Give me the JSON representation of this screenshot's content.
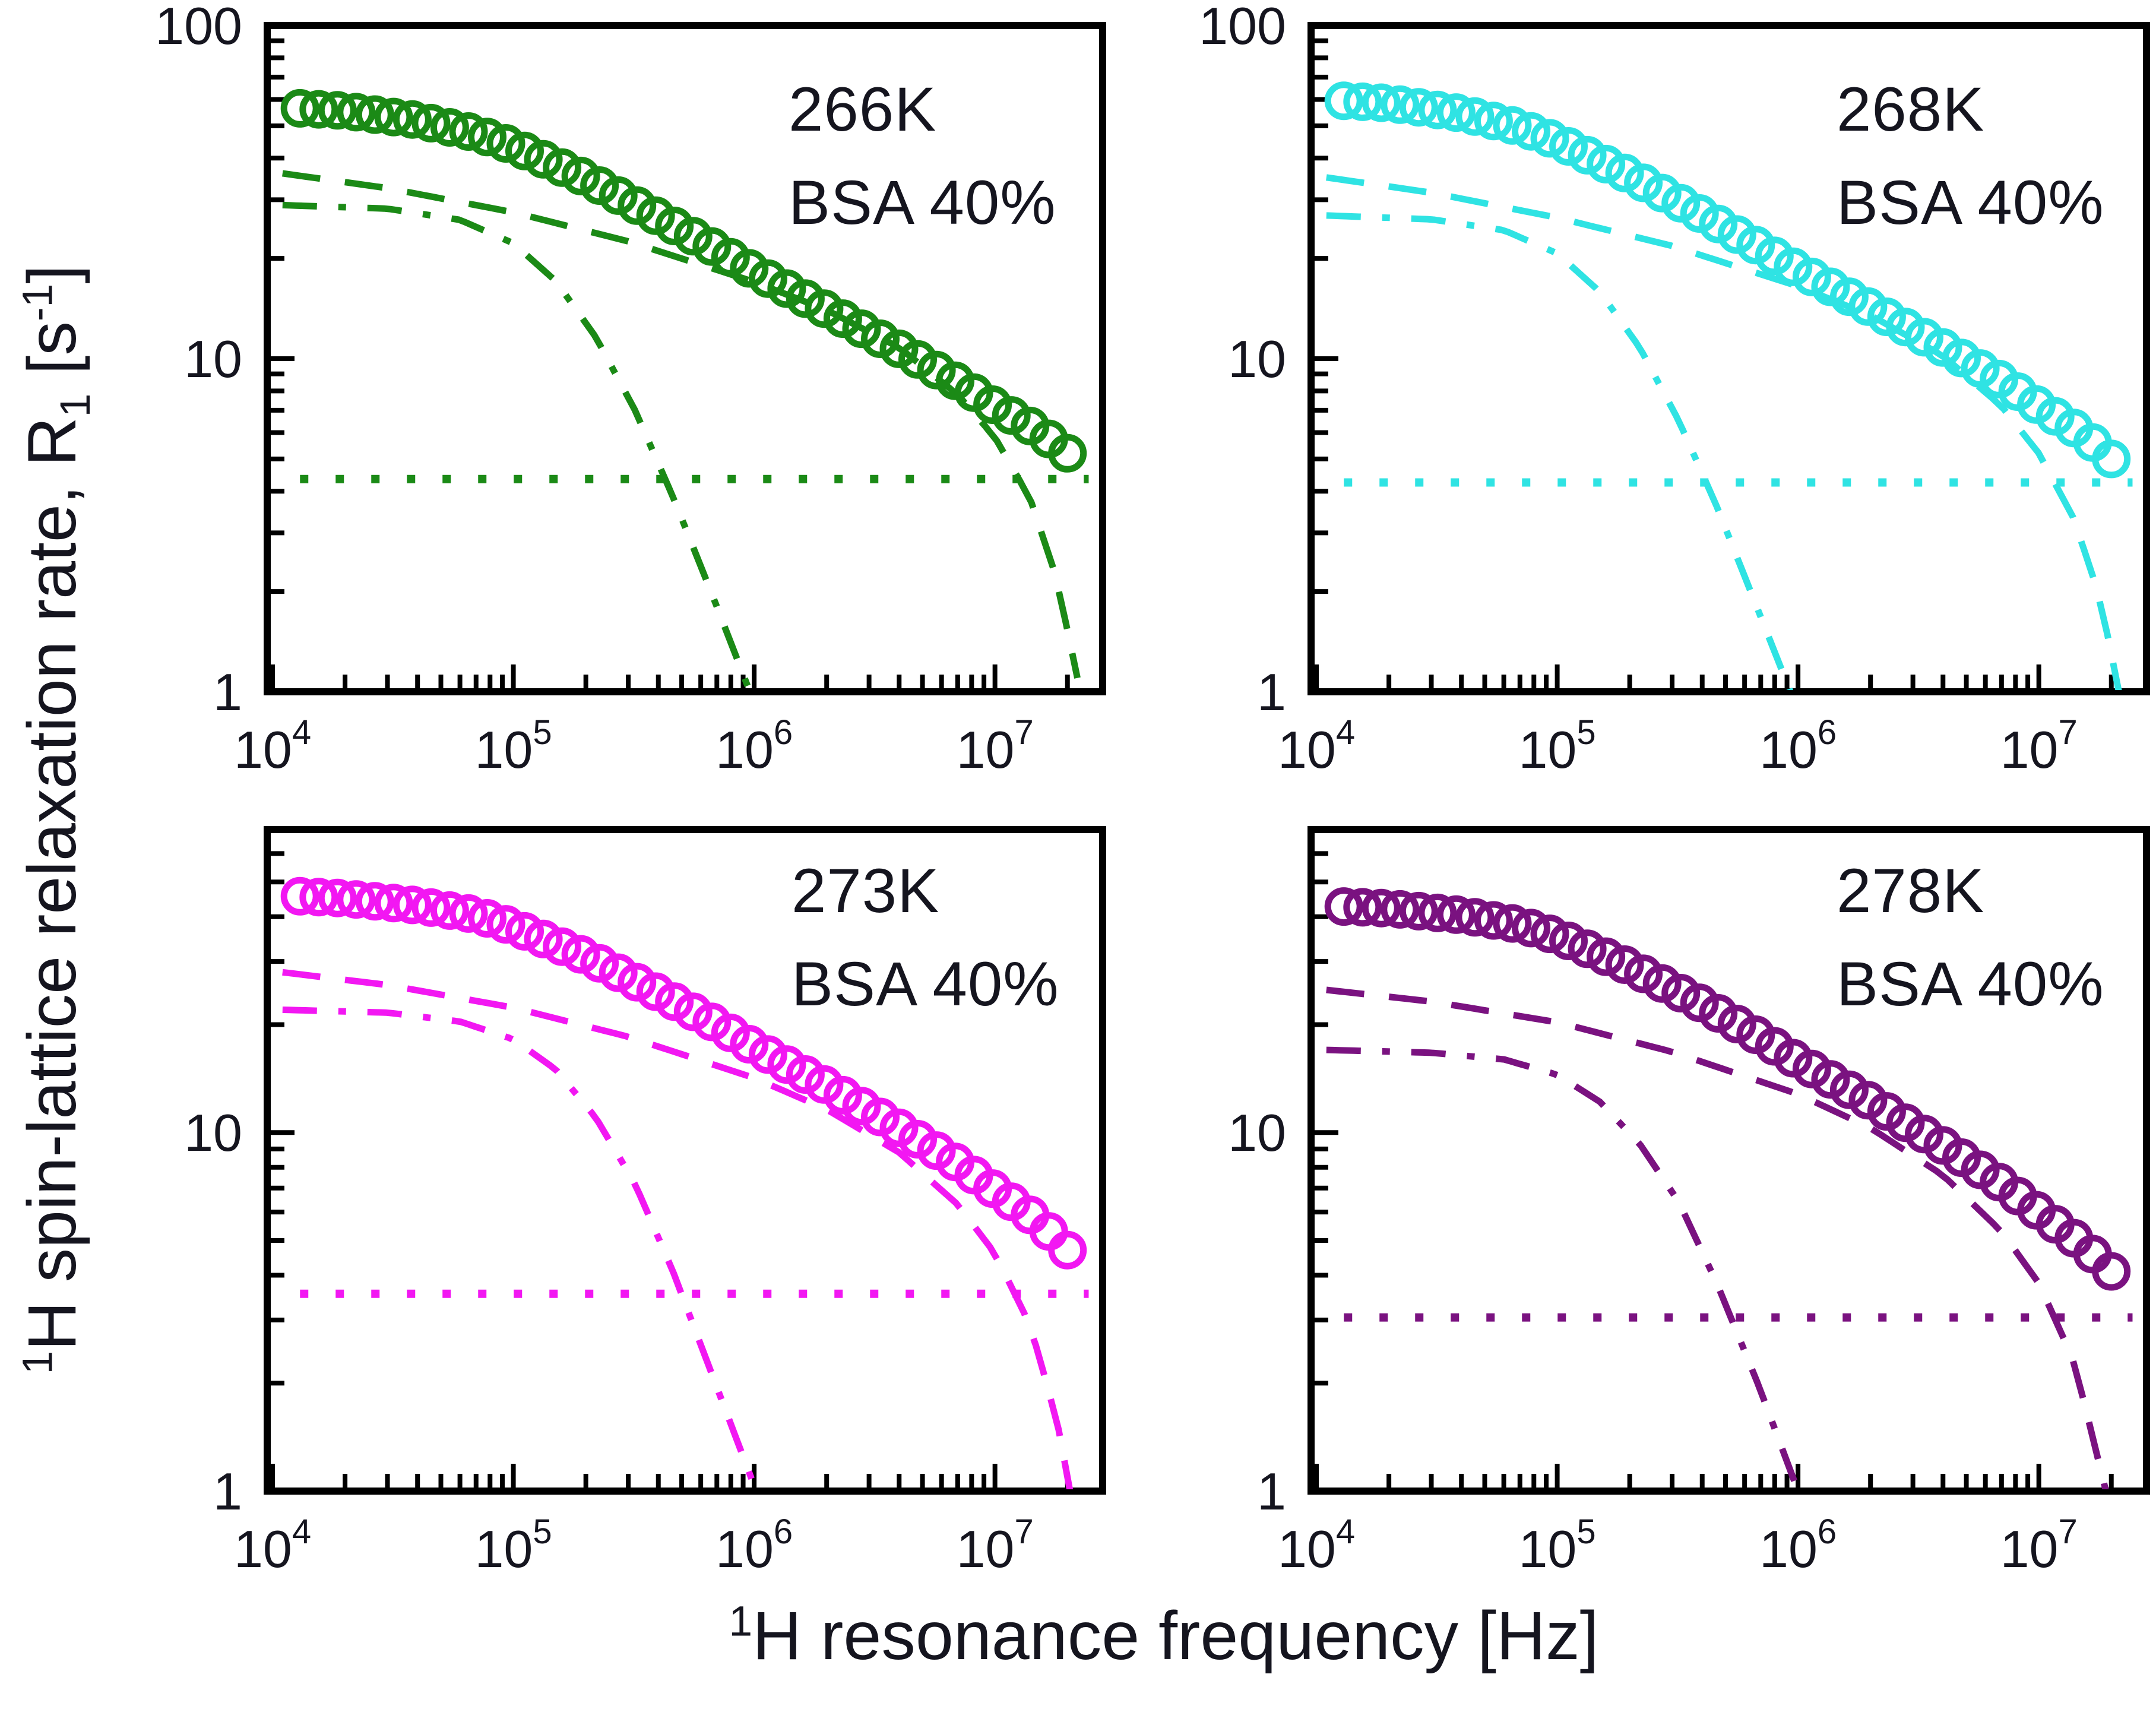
{
  "figure": {
    "x_axis_title": {
      "sup": "1",
      "main": "H resonance frequency [Hz]"
    },
    "y_axis_title": {
      "sup1": "1",
      "main": "H spin-lattice relaxation rate,  R",
      "sub": "1",
      "bracket_pre": " [s",
      "sup2": "-1",
      "bracket_post": "]"
    }
  },
  "colors": {
    "axis": "#000000",
    "text": "#15151f",
    "background": "#ffffff",
    "panel_266K": "#1b8a16",
    "panel_268K": "#2fe3e3",
    "panel_273K": "#f217f2",
    "panel_278K": "#7a1280"
  },
  "chart_data": {
    "type": "line",
    "subtype": "scatter+component-lines, 2x2 panel grid",
    "x_scale": "log",
    "y_scale": "log",
    "grid": false,
    "legend_position": "none",
    "x_axis": {
      "range": [
        9500,
        28000000
      ],
      "labeled_decades": [
        4,
        5,
        6,
        7
      ],
      "label_base": "10",
      "title": "1H resonance frequency [Hz]"
    },
    "y_axis": {
      "title": "1H spin-lattice relaxation rate, R1 [s-1]"
    },
    "line_styles": {
      "circles": "open circle markers (measured R1 dispersion)",
      "dashed": "dashed component line",
      "dashdot": "dash-dot component line",
      "dotted": "dotted horizontal offset line"
    },
    "panels": [
      {
        "temperature": "266K",
        "sample": "BSA 40%",
        "color": "#1b8a16",
        "ylim": [
          1,
          100
        ],
        "y_tick_labels": [
          {
            "value": 100,
            "label": "100"
          },
          {
            "value": 10,
            "label": "10"
          },
          {
            "value": 1,
            "label": "1"
          }
        ],
        "series": {
          "circles": [
            [
              10000,
              57
            ],
            [
              20000,
              55.5
            ],
            [
              40000,
              52
            ],
            [
              70000,
              47.5
            ],
            [
              100000,
              43.5
            ],
            [
              200000,
              34.8
            ],
            [
              400000,
              26.6
            ],
            [
              700000,
              21.3
            ],
            [
              1000000,
              18.3
            ],
            [
              2000000,
              14.0
            ],
            [
              4000000,
              10.7
            ],
            [
              7000000,
              8.5
            ],
            [
              10000000,
              7.2
            ],
            [
              15000000,
              6.1
            ],
            [
              20000000,
              5.2
            ]
          ],
          "dashed": [
            [
              11000,
              36
            ],
            [
              30000,
              32.5
            ],
            [
              100000,
              27.5
            ],
            [
              300000,
              22.5
            ],
            [
              1000000,
              17.0
            ],
            [
              2000000,
              14.0
            ],
            [
              4000000,
              10.8
            ],
            [
              7000000,
              7.8
            ],
            [
              10000000,
              5.8
            ],
            [
              14000000,
              3.8
            ],
            [
              18000000,
              2.2
            ],
            [
              22000000,
              1.1
            ]
          ],
          "dashdot": [
            [
              11000,
              28.9
            ],
            [
              30000,
              28.2
            ],
            [
              60000,
              26.1
            ],
            [
              100000,
              22.2
            ],
            [
              150000,
              17.1
            ],
            [
              220000,
              11.6
            ],
            [
              320000,
              7.0
            ],
            [
              460000,
              3.85
            ],
            [
              680000,
              1.9
            ],
            [
              960000,
              1.0
            ]
          ],
          "dotted_level": 4.35
        }
      },
      {
        "temperature": "268K",
        "sample": "BSA 40%",
        "color": "#2fe3e3",
        "ylim": [
          1,
          100
        ],
        "y_tick_labels": [
          {
            "value": 100,
            "label": "100"
          },
          {
            "value": 10,
            "label": "10"
          },
          {
            "value": 1,
            "label": "1"
          }
        ],
        "series": {
          "circles": [
            [
              10000,
              60
            ],
            [
              20000,
              58.5
            ],
            [
              40000,
              54.5
            ],
            [
              70000,
              49.5
            ],
            [
              100000,
              45
            ],
            [
              200000,
              35.5
            ],
            [
              400000,
              27
            ],
            [
              700000,
              21.5
            ],
            [
              1000000,
              18.5
            ],
            [
              2000000,
              14.2
            ],
            [
              4000000,
              10.8
            ],
            [
              7000000,
              8.6
            ],
            [
              10000000,
              7.2
            ],
            [
              15000000,
              6.0
            ],
            [
              20000000,
              5.0
            ]
          ],
          "dashed": [
            [
              11000,
              35
            ],
            [
              30000,
              31.5
            ],
            [
              100000,
              26.5
            ],
            [
              300000,
              21.8
            ],
            [
              1000000,
              16.5
            ],
            [
              2000000,
              13.5
            ],
            [
              4000000,
              10.2
            ],
            [
              7000000,
              7.2
            ],
            [
              10000000,
              5.2
            ],
            [
              14000000,
              3.3
            ],
            [
              18000000,
              1.9
            ],
            [
              21500000,
              1.0
            ]
          ],
          "dashdot": [
            [
              11000,
              26.9
            ],
            [
              30000,
              26.2
            ],
            [
              60000,
              24.3
            ],
            [
              100000,
              20.7
            ],
            [
              150000,
              15.9
            ],
            [
              220000,
              10.8
            ],
            [
              320000,
              6.5
            ],
            [
              460000,
              3.6
            ],
            [
              680000,
              1.77
            ],
            [
              930000,
              1.0
            ]
          ],
          "dotted_level": 4.25
        }
      },
      {
        "temperature": "273K",
        "sample": "BSA 40%",
        "color": "#f217f2",
        "ylim": [
          1,
          70
        ],
        "y_tick_labels": [
          {
            "value": 10,
            "label": "10"
          },
          {
            "value": 1,
            "label": "1"
          }
        ],
        "series": {
          "circles": [
            [
              10000,
              46
            ],
            [
              20000,
              45
            ],
            [
              40000,
              43
            ],
            [
              70000,
              40.5
            ],
            [
              100000,
              37.5
            ],
            [
              200000,
              31
            ],
            [
              400000,
              24.5
            ],
            [
              700000,
              20
            ],
            [
              1000000,
              17.3
            ],
            [
              2000000,
              13.5
            ],
            [
              4000000,
              10.3
            ],
            [
              7000000,
              8.2
            ],
            [
              10000000,
              6.9
            ],
            [
              15000000,
              5.7
            ],
            [
              20000000,
              4.7
            ]
          ],
          "dashed": [
            [
              11000,
              28
            ],
            [
              30000,
              25.8
            ],
            [
              100000,
              22.3
            ],
            [
              300000,
              18.5
            ],
            [
              1000000,
              14.2
            ],
            [
              2000000,
              11.6
            ],
            [
              4000000,
              8.8
            ],
            [
              7000000,
              6.3
            ],
            [
              10000000,
              4.6
            ],
            [
              14000000,
              2.9
            ],
            [
              18000000,
              1.6
            ],
            [
              20500000,
              1.0
            ]
          ],
          "dashdot": [
            [
              11000,
              22
            ],
            [
              30000,
              21.6
            ],
            [
              60000,
              20.4
            ],
            [
              100000,
              18.2
            ],
            [
              150000,
              15.0
            ],
            [
              220000,
              11.0
            ],
            [
              320000,
              7.2
            ],
            [
              460000,
              4.1
            ],
            [
              680000,
              2.05
            ],
            [
              1020000,
              1.0
            ]
          ],
          "dotted_level": 3.55
        }
      },
      {
        "temperature": "278K",
        "sample": "BSA 40%",
        "color": "#7a1280",
        "ylim": [
          1,
          70
        ],
        "y_tick_labels": [
          {
            "value": 10,
            "label": "10"
          },
          {
            "value": 1,
            "label": "1"
          }
        ],
        "series": {
          "circles": [
            [
              10000,
              43
            ],
            [
              20000,
              42.2
            ],
            [
              40000,
              40.4
            ],
            [
              70000,
              38
            ],
            [
              100000,
              35.3
            ],
            [
              200000,
              29
            ],
            [
              400000,
              22.8
            ],
            [
              700000,
              18.4
            ],
            [
              1000000,
              15.8
            ],
            [
              2000000,
              12.2
            ],
            [
              4000000,
              9.2
            ],
            [
              7000000,
              7.2
            ],
            [
              10000000,
              6.0
            ],
            [
              15000000,
              4.9
            ],
            [
              20000000,
              4.1
            ]
          ],
          "dashed": [
            [
              11000,
              25
            ],
            [
              30000,
              23.2
            ],
            [
              100000,
              20.3
            ],
            [
              300000,
              16.8
            ],
            [
              1000000,
              12.8
            ],
            [
              2000000,
              10.3
            ],
            [
              4000000,
              7.6
            ],
            [
              7000000,
              5.3
            ],
            [
              10000000,
              3.8
            ],
            [
              14000000,
              2.3
            ],
            [
              17500000,
              1.25
            ],
            [
              19000000,
              1.0
            ]
          ],
          "dashdot": [
            [
              11000,
              17
            ],
            [
              30000,
              16.7
            ],
            [
              60000,
              16.0
            ],
            [
              100000,
              14.5
            ],
            [
              150000,
              12.2
            ],
            [
              220000,
              9.3
            ],
            [
              320000,
              6.4
            ],
            [
              460000,
              3.8
            ],
            [
              680000,
              2.0
            ],
            [
              1000000,
              1.0
            ]
          ],
          "dotted_level": 3.05
        }
      }
    ]
  }
}
